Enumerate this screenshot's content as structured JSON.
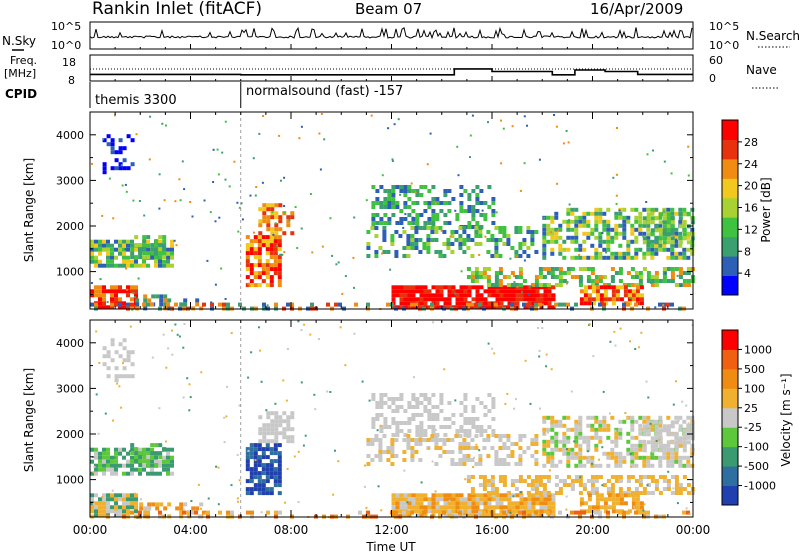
{
  "header": {
    "title": "Rankin Inlet (fitACF)",
    "beam": "Beam 07",
    "date": "16/Apr/2009"
  },
  "left_labels": {
    "nsky": "N.Sky",
    "freq_line1": "Freq.",
    "freq_line2": "[MHz]",
    "cpid": "CPID"
  },
  "right_labels": {
    "nsearch": "N.Search",
    "nave": "Nave"
  },
  "cpid_labels": {
    "first": "themis 3300",
    "second": "normalsound (fast) -157"
  },
  "time_axis": {
    "label": "Time UT",
    "ticks": [
      "00:00",
      "04:00",
      "08:00",
      "12:00",
      "16:00",
      "20:00",
      "00:00"
    ]
  },
  "chart_data": [
    {
      "type": "line",
      "panel": "noise",
      "left_ticks": [
        "10^5",
        "10^0"
      ],
      "right_ticks": [
        "10^5",
        "10^0"
      ]
    },
    {
      "type": "line",
      "panel": "frequency",
      "left_ticks": [
        "18",
        "8"
      ],
      "right_ticks": [
        "60",
        "0"
      ],
      "cpid_change_time_hours": 6.0,
      "freq_mhz": [
        [
          0.0,
          11.0
        ],
        [
          6.0,
          11.0
        ],
        [
          6.0,
          10.8
        ],
        [
          14.5,
          10.8
        ],
        [
          14.5,
          13.5
        ],
        [
          16.0,
          13.5
        ],
        [
          16.0,
          12.3
        ],
        [
          18.4,
          12.3
        ],
        [
          18.4,
          10.8
        ],
        [
          19.3,
          10.8
        ],
        [
          19.3,
          13.0
        ],
        [
          20.5,
          13.0
        ],
        [
          20.5,
          12.3
        ],
        [
          21.8,
          12.3
        ],
        [
          21.8,
          11.0
        ],
        [
          24.0,
          11.0
        ]
      ]
    },
    {
      "type": "heatmap",
      "panel": "power",
      "x_range_hours": [
        0,
        24
      ],
      "y_range_km": [
        180,
        4500
      ],
      "ylabel": "Slant Range [km]",
      "yticks": [
        "1000",
        "2000",
        "3000",
        "4000"
      ],
      "colorbar": {
        "label": "Power [dB]",
        "ticks": [
          "4",
          "8",
          "12",
          "16",
          "20",
          "24",
          "28"
        ],
        "range": [
          0,
          32
        ],
        "colors": [
          "#0000ff",
          "#2d5fb7",
          "#3aa070",
          "#3fc23f",
          "#a8d132",
          "#f2c81e",
          "#f08c12",
          "#e8320e",
          "#ff0000"
        ]
      }
    },
    {
      "type": "heatmap",
      "panel": "velocity",
      "x_range_hours": [
        0,
        24
      ],
      "y_range_km": [
        180,
        4500
      ],
      "ylabel": "Slant Range [km]",
      "yticks": [
        "1000",
        "2000",
        "3000",
        "4000"
      ],
      "colorbar": {
        "label": "Velocity [m s⁻¹]",
        "ticks": [
          "1000",
          "500",
          "100",
          "25",
          "-25",
          "-100",
          "-500",
          "-1000"
        ],
        "colors": [
          "#2040b0",
          "#2e6ea0",
          "#3a9a70",
          "#5ec83c",
          "#c8c8c8",
          "#f0b030",
          "#f08c12",
          "#f06010",
          "#ff0000"
        ]
      }
    }
  ]
}
